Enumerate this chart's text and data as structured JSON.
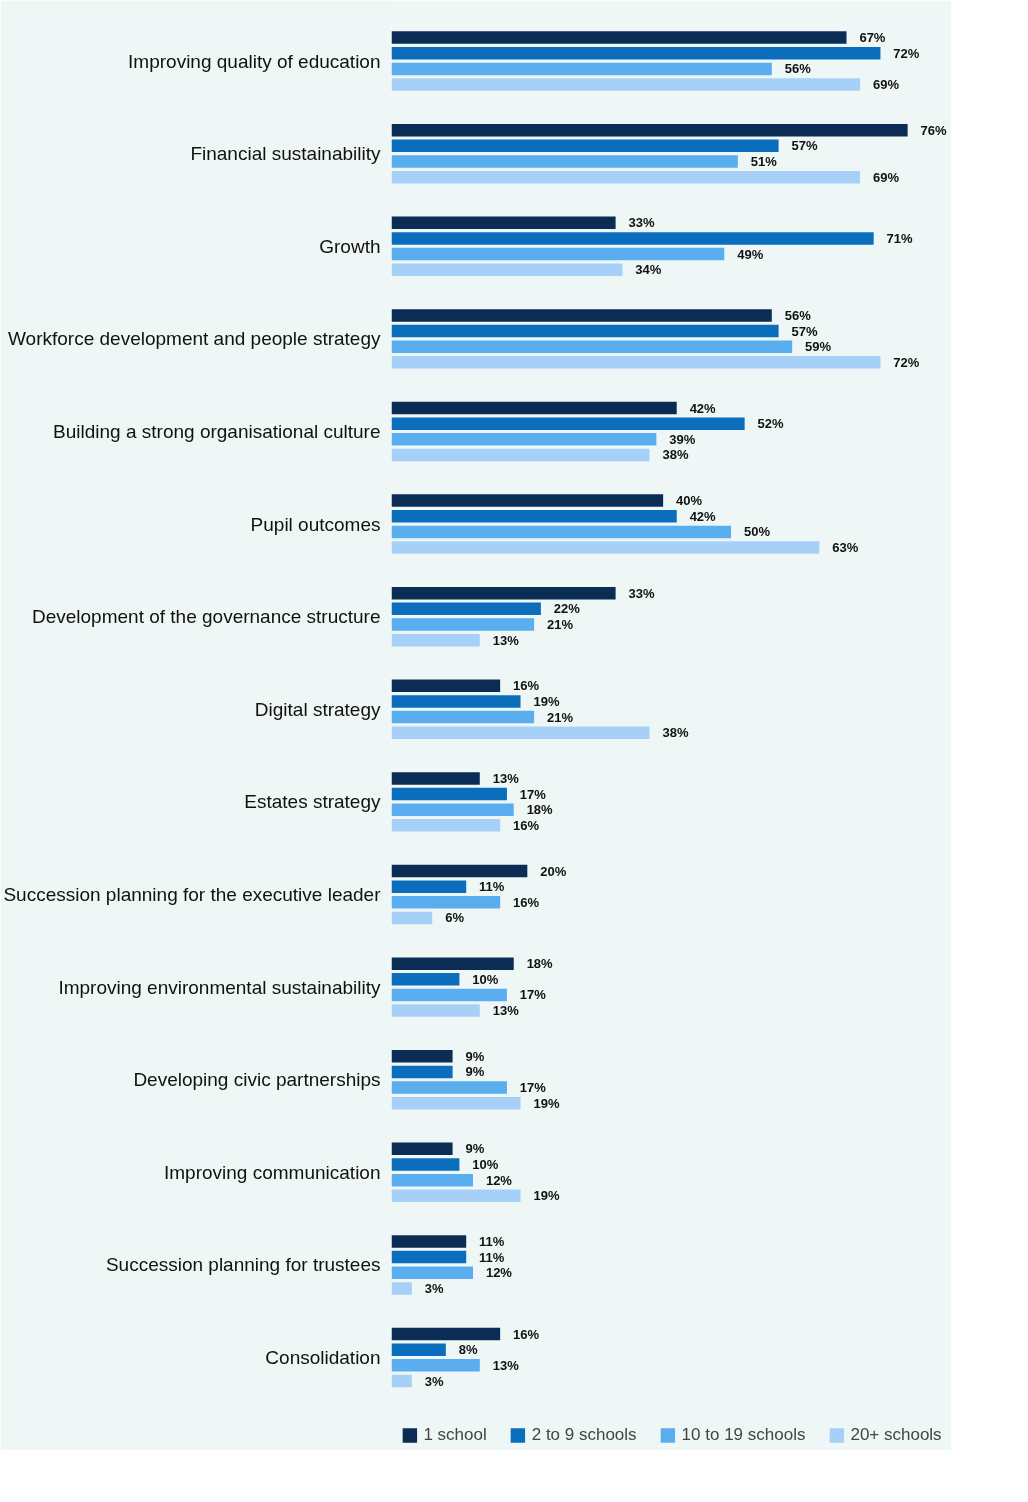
{
  "chart_data": {
    "type": "bar",
    "orientation": "horizontal",
    "data_labels": true,
    "legend": "bottom",
    "grid": false,
    "categories": [
      "Improving quality of education",
      "Financial sustainability",
      "Growth",
      "Workforce development and people strategy",
      "Building a strong organisational culture",
      "Pupil outcomes",
      "Development of the governance structure",
      "Digital strategy",
      "Estates strategy",
      "Succession planning for the executive leader",
      "Improving environmental sustainability",
      "Developing civic partnerships",
      "Improving communication",
      "Succession planning for trustees",
      "Consolidation"
    ],
    "series": [
      {
        "name": "1 school",
        "color": "#0b2d55",
        "values": [
          67,
          76,
          33,
          56,
          42,
          40,
          33,
          16,
          13,
          20,
          18,
          9,
          9,
          11,
          16
        ],
        "value_labels": [
          "67%",
          "76%",
          "33%",
          "56%",
          "42%",
          "40%",
          "33%",
          "16%",
          "13%",
          "20%",
          "18%",
          "9%",
          "9%",
          "11%",
          "16%"
        ]
      },
      {
        "name": "2 to 9 schools",
        "color": "#0a6ebd",
        "values": [
          72,
          57,
          71,
          57,
          52,
          42,
          22,
          19,
          17,
          11,
          10,
          9,
          10,
          11,
          8
        ],
        "value_labels": [
          "72%",
          "57%",
          "71%",
          "57%",
          "52%",
          "42%",
          "22%",
          "19%",
          "17%",
          "11%",
          "10%",
          "9%",
          "10%",
          "11%",
          "8%"
        ]
      },
      {
        "name": "10 to 19 schools",
        "color": "#5aaef0",
        "values": [
          56,
          51,
          49,
          59,
          39,
          50,
          21,
          21,
          18,
          16,
          17,
          17,
          12,
          12,
          13
        ],
        "value_labels": [
          "56%",
          "51%",
          "49%",
          "59%",
          "39%",
          "50%",
          "21%",
          "21%",
          "18%",
          "16%",
          "17%",
          "17%",
          "12%",
          "12%",
          "13%"
        ]
      },
      {
        "name": "20+ schools",
        "color": "#a6d0f7",
        "values": [
          69,
          69,
          34,
          72,
          38,
          63,
          13,
          38,
          16,
          6,
          13,
          19,
          19,
          3,
          3
        ],
        "value_labels": [
          "69%",
          "69%",
          "34%",
          "72%",
          "38%",
          "63%",
          "13%",
          "38%",
          "16%",
          "6%",
          "13%",
          "19%",
          "19%",
          "3%",
          "3%"
        ]
      }
    ]
  }
}
